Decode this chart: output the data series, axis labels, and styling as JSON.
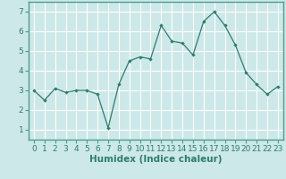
{
  "x": [
    0,
    1,
    2,
    3,
    4,
    5,
    6,
    7,
    8,
    9,
    10,
    11,
    12,
    13,
    14,
    15,
    16,
    17,
    18,
    19,
    20,
    21,
    22,
    23
  ],
  "y": [
    3.0,
    2.5,
    3.1,
    2.9,
    3.0,
    3.0,
    2.8,
    1.1,
    3.3,
    4.5,
    4.7,
    4.6,
    6.3,
    5.5,
    5.4,
    4.8,
    6.5,
    7.0,
    6.3,
    5.3,
    3.9,
    3.3,
    2.8,
    3.2
  ],
  "xlabel": "Humidex (Indice chaleur)",
  "xlim": [
    -0.5,
    23.5
  ],
  "ylim": [
    0.5,
    7.5
  ],
  "yticks": [
    1,
    2,
    3,
    4,
    5,
    6,
    7
  ],
  "xticks": [
    0,
    1,
    2,
    3,
    4,
    5,
    6,
    7,
    8,
    9,
    10,
    11,
    12,
    13,
    14,
    15,
    16,
    17,
    18,
    19,
    20,
    21,
    22,
    23
  ],
  "bg_color": "#cde8e8",
  "grid_color": "#ffffff",
  "line_color": "#2d7d6e",
  "marker_color": "#2d7d6e",
  "label_fontsize": 7.5,
  "tick_fontsize": 6.5,
  "spine_color": "#4a9e90"
}
